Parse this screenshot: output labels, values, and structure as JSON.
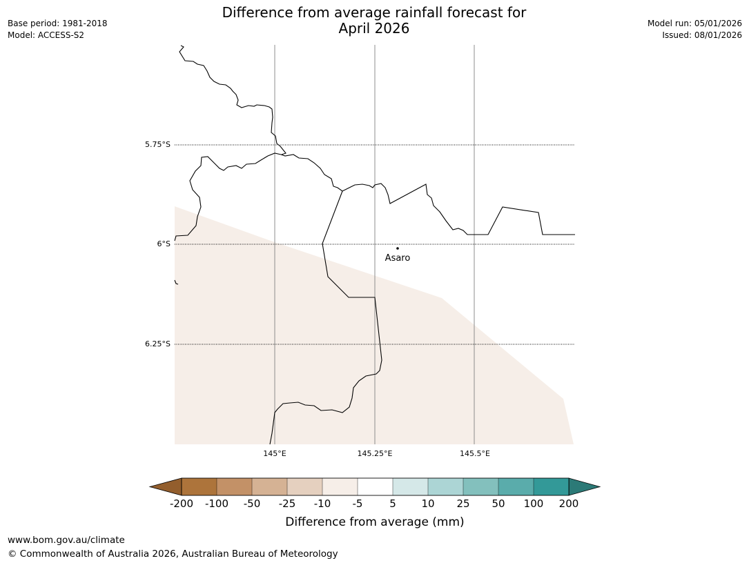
{
  "title": {
    "line1": "Difference from average rainfall forecast for",
    "line2": "April 2026"
  },
  "meta_left": {
    "base_period": "Base period: 1981-2018",
    "model": "Model: ACCESS-S2"
  },
  "meta_right": {
    "model_run": "Model run: 05/01/2026",
    "issued": "Issued: 08/01/2026"
  },
  "map": {
    "lat_labels": [
      "5.75°S",
      "6°S",
      "6.25°S"
    ],
    "lon_labels": [
      "145°E",
      "145.25°E",
      "145.5°E"
    ],
    "place": {
      "name": "Asaro"
    },
    "shaded_category": "-10 to -5"
  },
  "colorbar": {
    "label": "Difference from average (mm)",
    "ticks": [
      "-200",
      "-100",
      "-50",
      "-25",
      "-10",
      "-5",
      "5",
      "10",
      "25",
      "50",
      "100",
      "200"
    ],
    "low_extend_color": "#935e2d",
    "high_extend_color": "#2c7a77",
    "colors": [
      "#ad743b",
      "#c39167",
      "#d5b294",
      "#e5d0bf",
      "#f6eee8",
      "#ffffff",
      "#d5e8e8",
      "#acd5d5",
      "#83c0bd",
      "#5aacab",
      "#339998"
    ]
  },
  "footer": {
    "url": "www.bom.gov.au/climate",
    "copyright": "© Commonwealth of Australia 2026, Australian Bureau of Meteorology"
  }
}
